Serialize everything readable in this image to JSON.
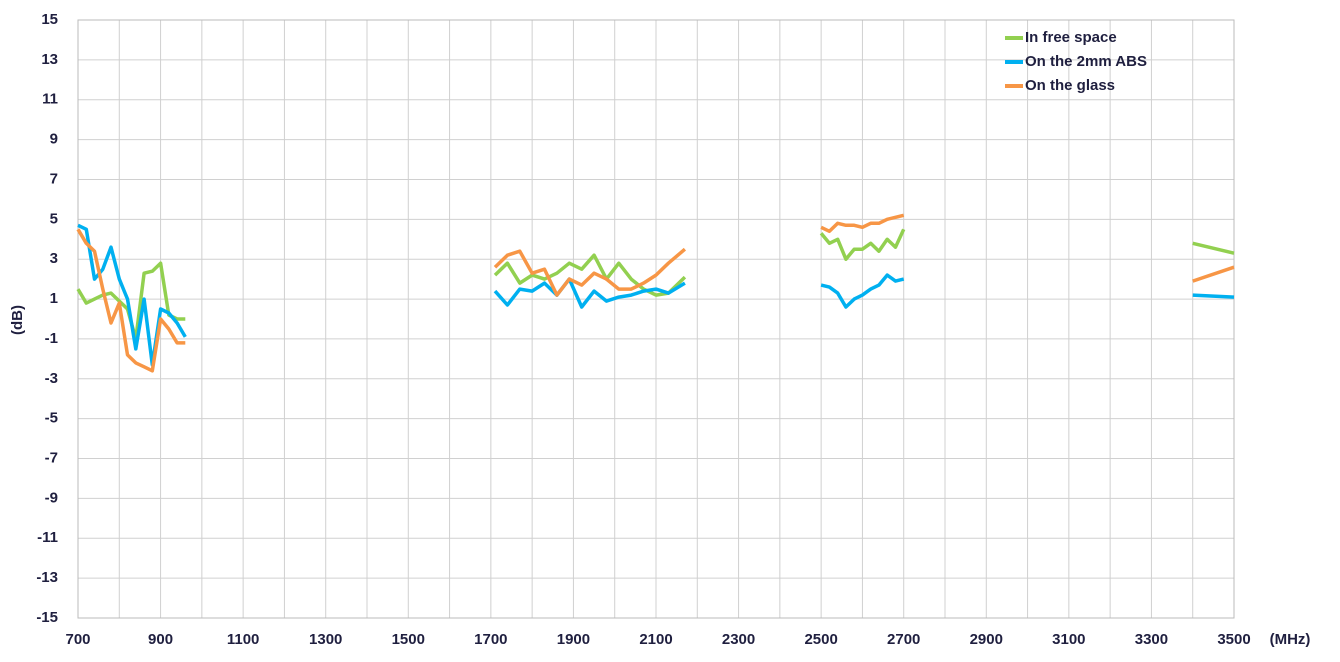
{
  "chart_data": {
    "type": "line",
    "y_label": "(dB)",
    "x_label": "(MHz)",
    "x": [
      700,
      720,
      740,
      760,
      780,
      800,
      820,
      840,
      860,
      880,
      900,
      920,
      940,
      960,
      1300,
      1710,
      1740,
      1770,
      1800,
      1830,
      1860,
      1890,
      1920,
      1950,
      1980,
      2010,
      2040,
      2070,
      2100,
      2130,
      2170,
      2300,
      2500,
      2520,
      2540,
      2560,
      2580,
      2600,
      2620,
      2640,
      2660,
      2680,
      2700,
      3000,
      3400,
      3500
    ],
    "series": [
      {
        "name": "In free space",
        "color": "#92d050",
        "values": [
          1.5,
          0.8,
          1.0,
          1.2,
          1.3,
          0.9,
          0.5,
          -1.0,
          2.3,
          2.4,
          2.8,
          0.2,
          0,
          0,
          null,
          2.2,
          2.8,
          1.8,
          2.2,
          2.0,
          2.3,
          2.8,
          2.5,
          3.2,
          2.0,
          2.8,
          2.0,
          1.5,
          1.2,
          1.3,
          2.1,
          null,
          4.3,
          3.8,
          4.0,
          3.0,
          3.5,
          3.5,
          3.8,
          3.4,
          4.0,
          3.6,
          4.5,
          null,
          3.8,
          3.3
        ]
      },
      {
        "name": "On the 2mm ABS",
        "color": "#00b0f0",
        "values": [
          4.7,
          4.5,
          2.0,
          2.5,
          3.6,
          2.0,
          1.0,
          -1.5,
          1.0,
          -2.3,
          0.5,
          0.3,
          -0.2,
          -0.9,
          null,
          1.4,
          0.7,
          1.5,
          1.4,
          1.8,
          1.2,
          2.0,
          0.6,
          1.4,
          0.9,
          1.1,
          1.2,
          1.4,
          1.5,
          1.3,
          1.8,
          null,
          1.7,
          1.6,
          1.3,
          0.6,
          1.0,
          1.2,
          1.5,
          1.7,
          2.2,
          1.9,
          2.0,
          null,
          1.2,
          1.1
        ]
      },
      {
        "name": "On the glass",
        "color": "#f79646",
        "values": [
          4.5,
          3.8,
          3.4,
          1.5,
          -0.2,
          0.8,
          -1.8,
          -2.2,
          -2.4,
          -2.6,
          0,
          -0.5,
          -1.2,
          -1.2,
          null,
          2.6,
          3.2,
          3.4,
          2.3,
          2.5,
          1.2,
          2.0,
          1.7,
          2.3,
          2.0,
          1.5,
          1.5,
          1.8,
          2.2,
          2.8,
          3.5,
          null,
          4.6,
          4.4,
          4.8,
          4.7,
          4.7,
          4.6,
          4.8,
          4.8,
          5.0,
          5.1,
          5.2,
          null,
          1.9,
          2.6
        ]
      }
    ],
    "xlim": [
      700,
      3500
    ],
    "ylim": [
      -15,
      15
    ],
    "xticks": [
      700,
      900,
      1100,
      1300,
      1500,
      1700,
      1900,
      2100,
      2300,
      2500,
      2700,
      2900,
      3100,
      3300,
      3500
    ],
    "x_minor_grid": [
      800,
      1000,
      1200,
      1400,
      1600,
      1800,
      2000,
      2200,
      2400,
      2600,
      2800,
      3000,
      3200,
      3400
    ],
    "yticks": [
      -15,
      -13,
      -11,
      -9,
      -7,
      -5,
      -3,
      -1,
      1,
      3,
      5,
      7,
      9,
      11,
      13,
      15
    ],
    "grid": true,
    "legend": "top-right"
  }
}
